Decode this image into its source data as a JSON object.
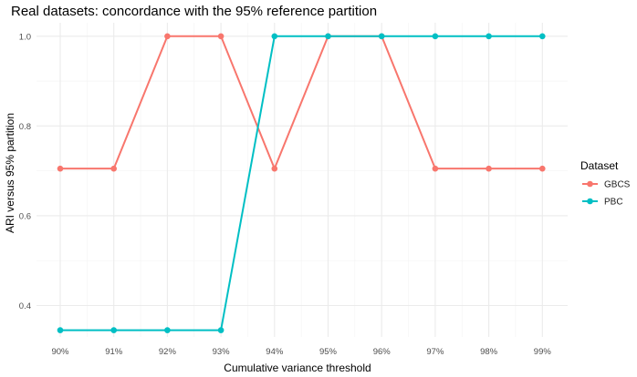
{
  "chart_data": {
    "type": "line",
    "title": "Real datasets: concordance with the 95% reference partition",
    "xlabel": "Cumulative variance threshold",
    "ylabel": "ARI versus 95% partition",
    "categories": [
      "90%",
      "91%",
      "92%",
      "93%",
      "94%",
      "95%",
      "96%",
      "97%",
      "98%",
      "99%"
    ],
    "ylim": [
      0.33,
      1.03
    ],
    "yticks": [
      0.4,
      0.6,
      0.8,
      1.0
    ],
    "ytick_labels": [
      "0.4",
      "0.6",
      "0.8",
      "1.0"
    ],
    "grid": true,
    "legend": {
      "title": "Dataset",
      "position": "right"
    },
    "series": [
      {
        "name": "GBCS",
        "color": "#F8766D",
        "values": [
          0.705,
          0.705,
          1.0,
          1.0,
          0.705,
          1.0,
          1.0,
          0.705,
          0.705,
          0.705
        ]
      },
      {
        "name": "PBC",
        "color": "#00BFC4",
        "values": [
          0.345,
          0.345,
          0.345,
          0.345,
          1.0,
          1.0,
          1.0,
          1.0,
          1.0,
          1.0
        ]
      }
    ]
  }
}
